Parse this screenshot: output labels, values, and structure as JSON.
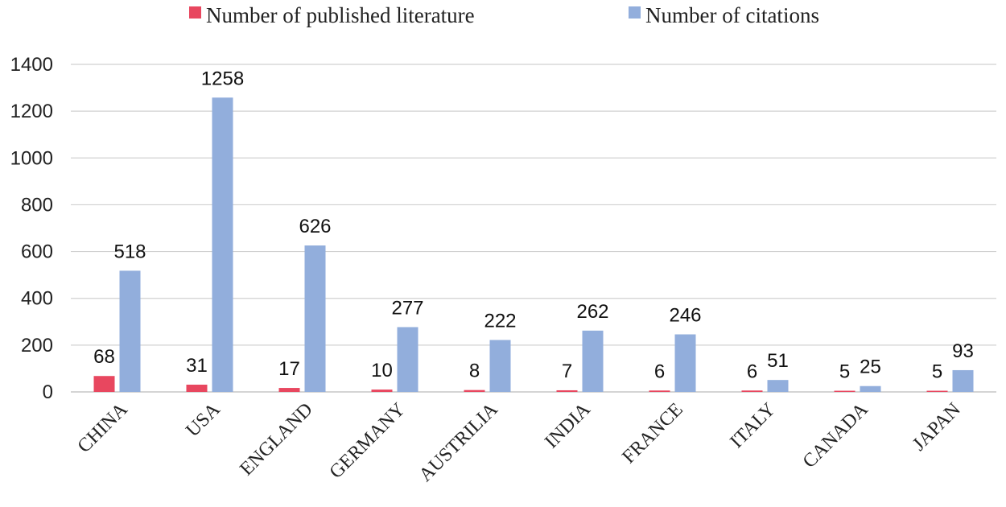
{
  "chart_data": {
    "type": "bar",
    "categories": [
      "CHINA",
      "USA",
      "ENGLAND",
      "GERMANY",
      "AUSTRILIA",
      "INDIA",
      "FRANCE",
      "ITALY",
      "CANADA",
      "JAPAN"
    ],
    "series": [
      {
        "name": "Number of published literature",
        "color": "#e8475f",
        "values": [
          68,
          31,
          17,
          10,
          8,
          7,
          6,
          6,
          5,
          5
        ]
      },
      {
        "name": "Number of citations",
        "color": "#92aedc",
        "values": [
          518,
          1258,
          626,
          277,
          222,
          262,
          246,
          51,
          25,
          93
        ]
      }
    ],
    "ylim": [
      0,
      1400
    ],
    "yticks": [
      0,
      200,
      400,
      600,
      800,
      1000,
      1200,
      1400
    ],
    "grid": true,
    "legend_position": "top-center",
    "data_labels": true
  }
}
